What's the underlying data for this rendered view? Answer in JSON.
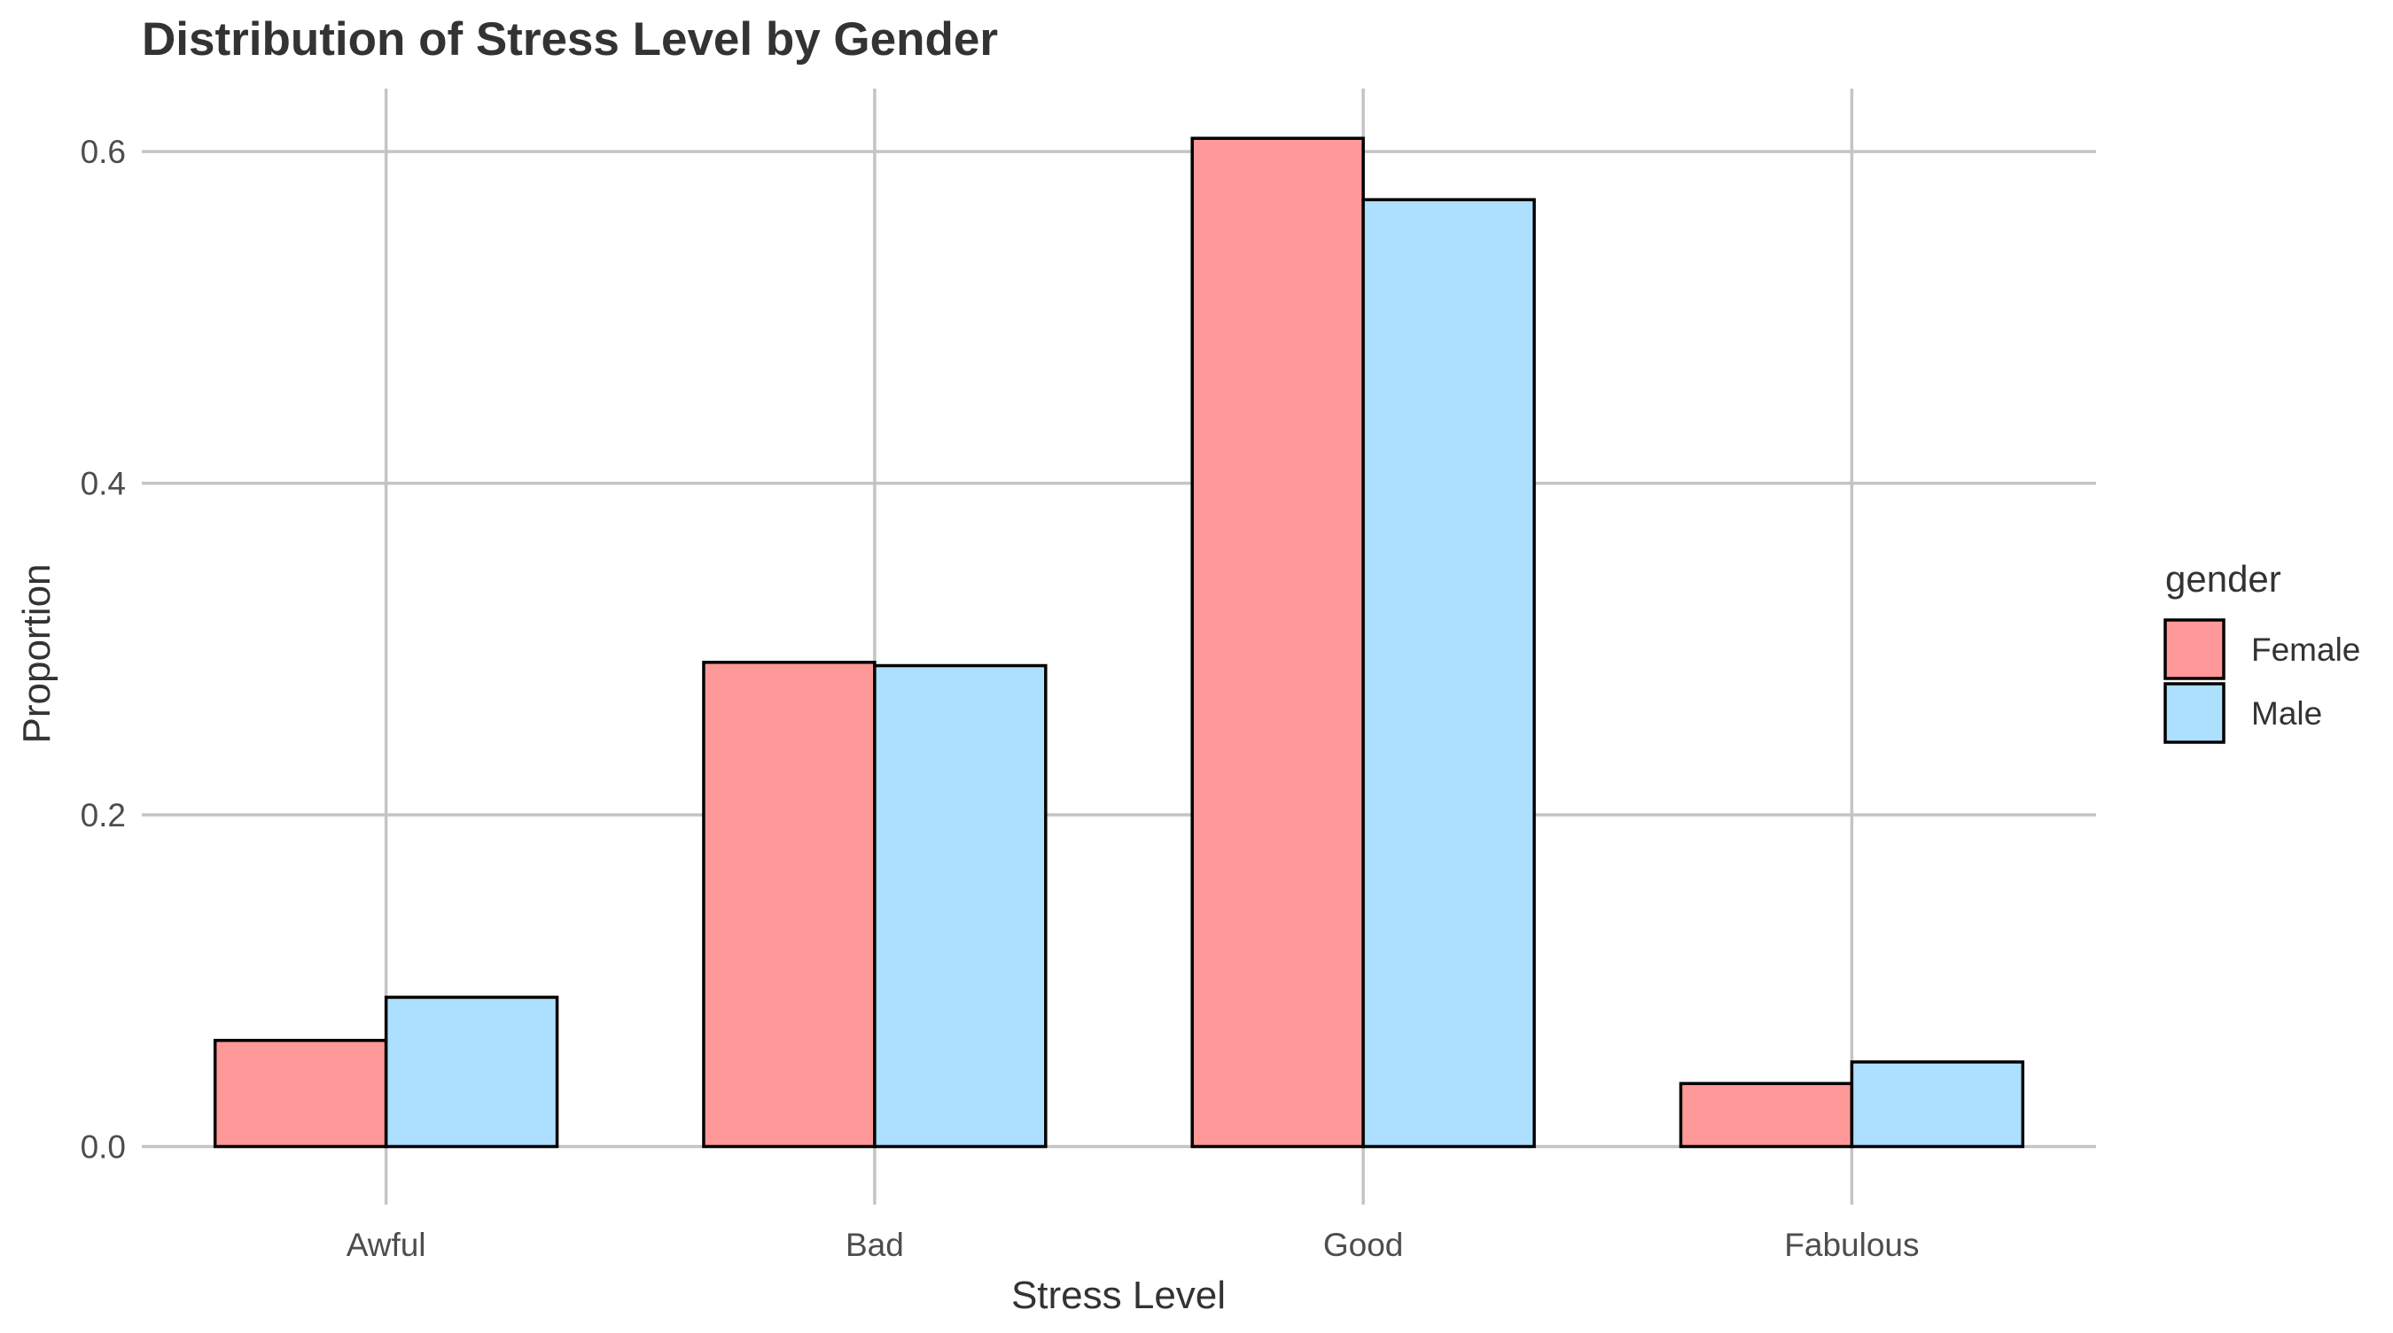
{
  "chart_data": {
    "type": "bar",
    "title": "Distribution of Stress Level by Gender",
    "xlabel": "Stress Level",
    "ylabel": "Proportion",
    "categories": [
      "Awful",
      "Bad",
      "Good",
      "Fabulous"
    ],
    "series": [
      {
        "name": "Female",
        "color": "#ff9999",
        "values": [
          0.064,
          0.292,
          0.608,
          0.038
        ]
      },
      {
        "name": "Male",
        "color": "#addfff",
        "values": [
          0.09,
          0.29,
          0.571,
          0.051
        ]
      }
    ],
    "ylim": [
      -0.035,
      0.638
    ],
    "yticks": [
      0.0,
      0.2,
      0.4,
      0.6
    ],
    "ytick_labels": [
      "0.0",
      "0.2",
      "0.4",
      "0.6"
    ],
    "grid": true,
    "legend": {
      "title": "gender",
      "placement": "right"
    }
  }
}
